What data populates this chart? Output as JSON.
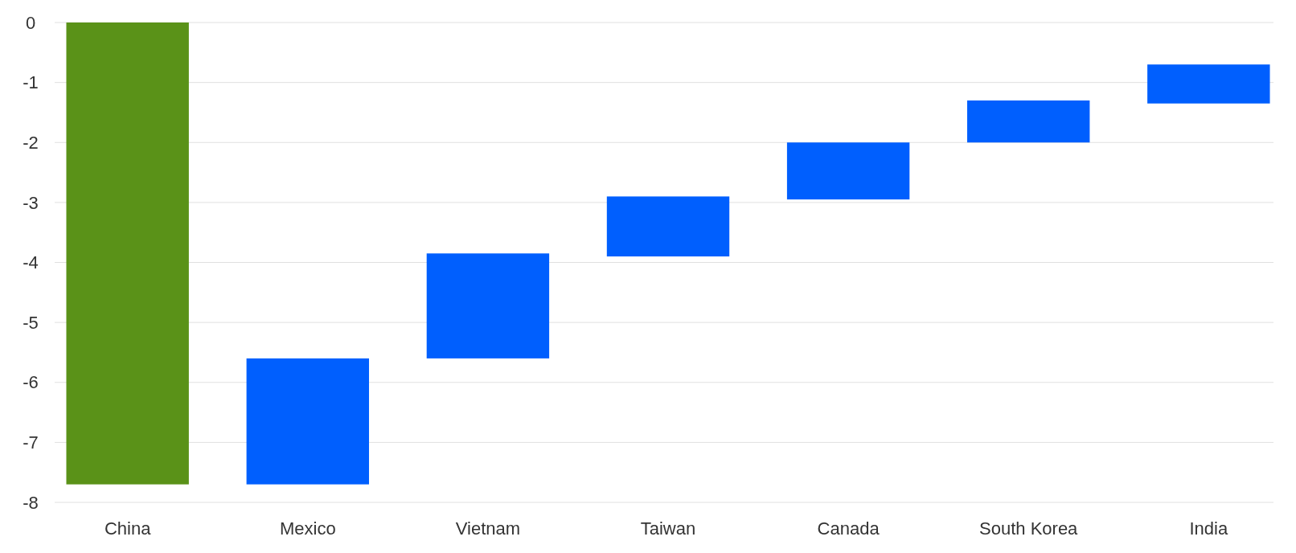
{
  "chart_data": {
    "type": "bar",
    "categories": [
      "China",
      "Mexico",
      "Vietnam",
      "Taiwan",
      "Canada",
      "South Korea",
      "India"
    ],
    "values": [
      -7.7,
      2.1,
      1.75,
      1.0,
      0.95,
      0.7,
      0.65
    ],
    "base": [
      0,
      -7.7,
      -5.6,
      -3.9,
      -2.95,
      -2.0,
      -1.35
    ],
    "colors": [
      "#5a9218",
      "#005ffe",
      "#005ffe",
      "#005ffe",
      "#005ffe",
      "#005ffe",
      "#005ffe"
    ],
    "ylim": [
      -8,
      0
    ],
    "yticks": [
      -8,
      -7,
      -6,
      -5,
      -4,
      -3,
      -2,
      -1,
      0
    ],
    "grid": "y"
  }
}
